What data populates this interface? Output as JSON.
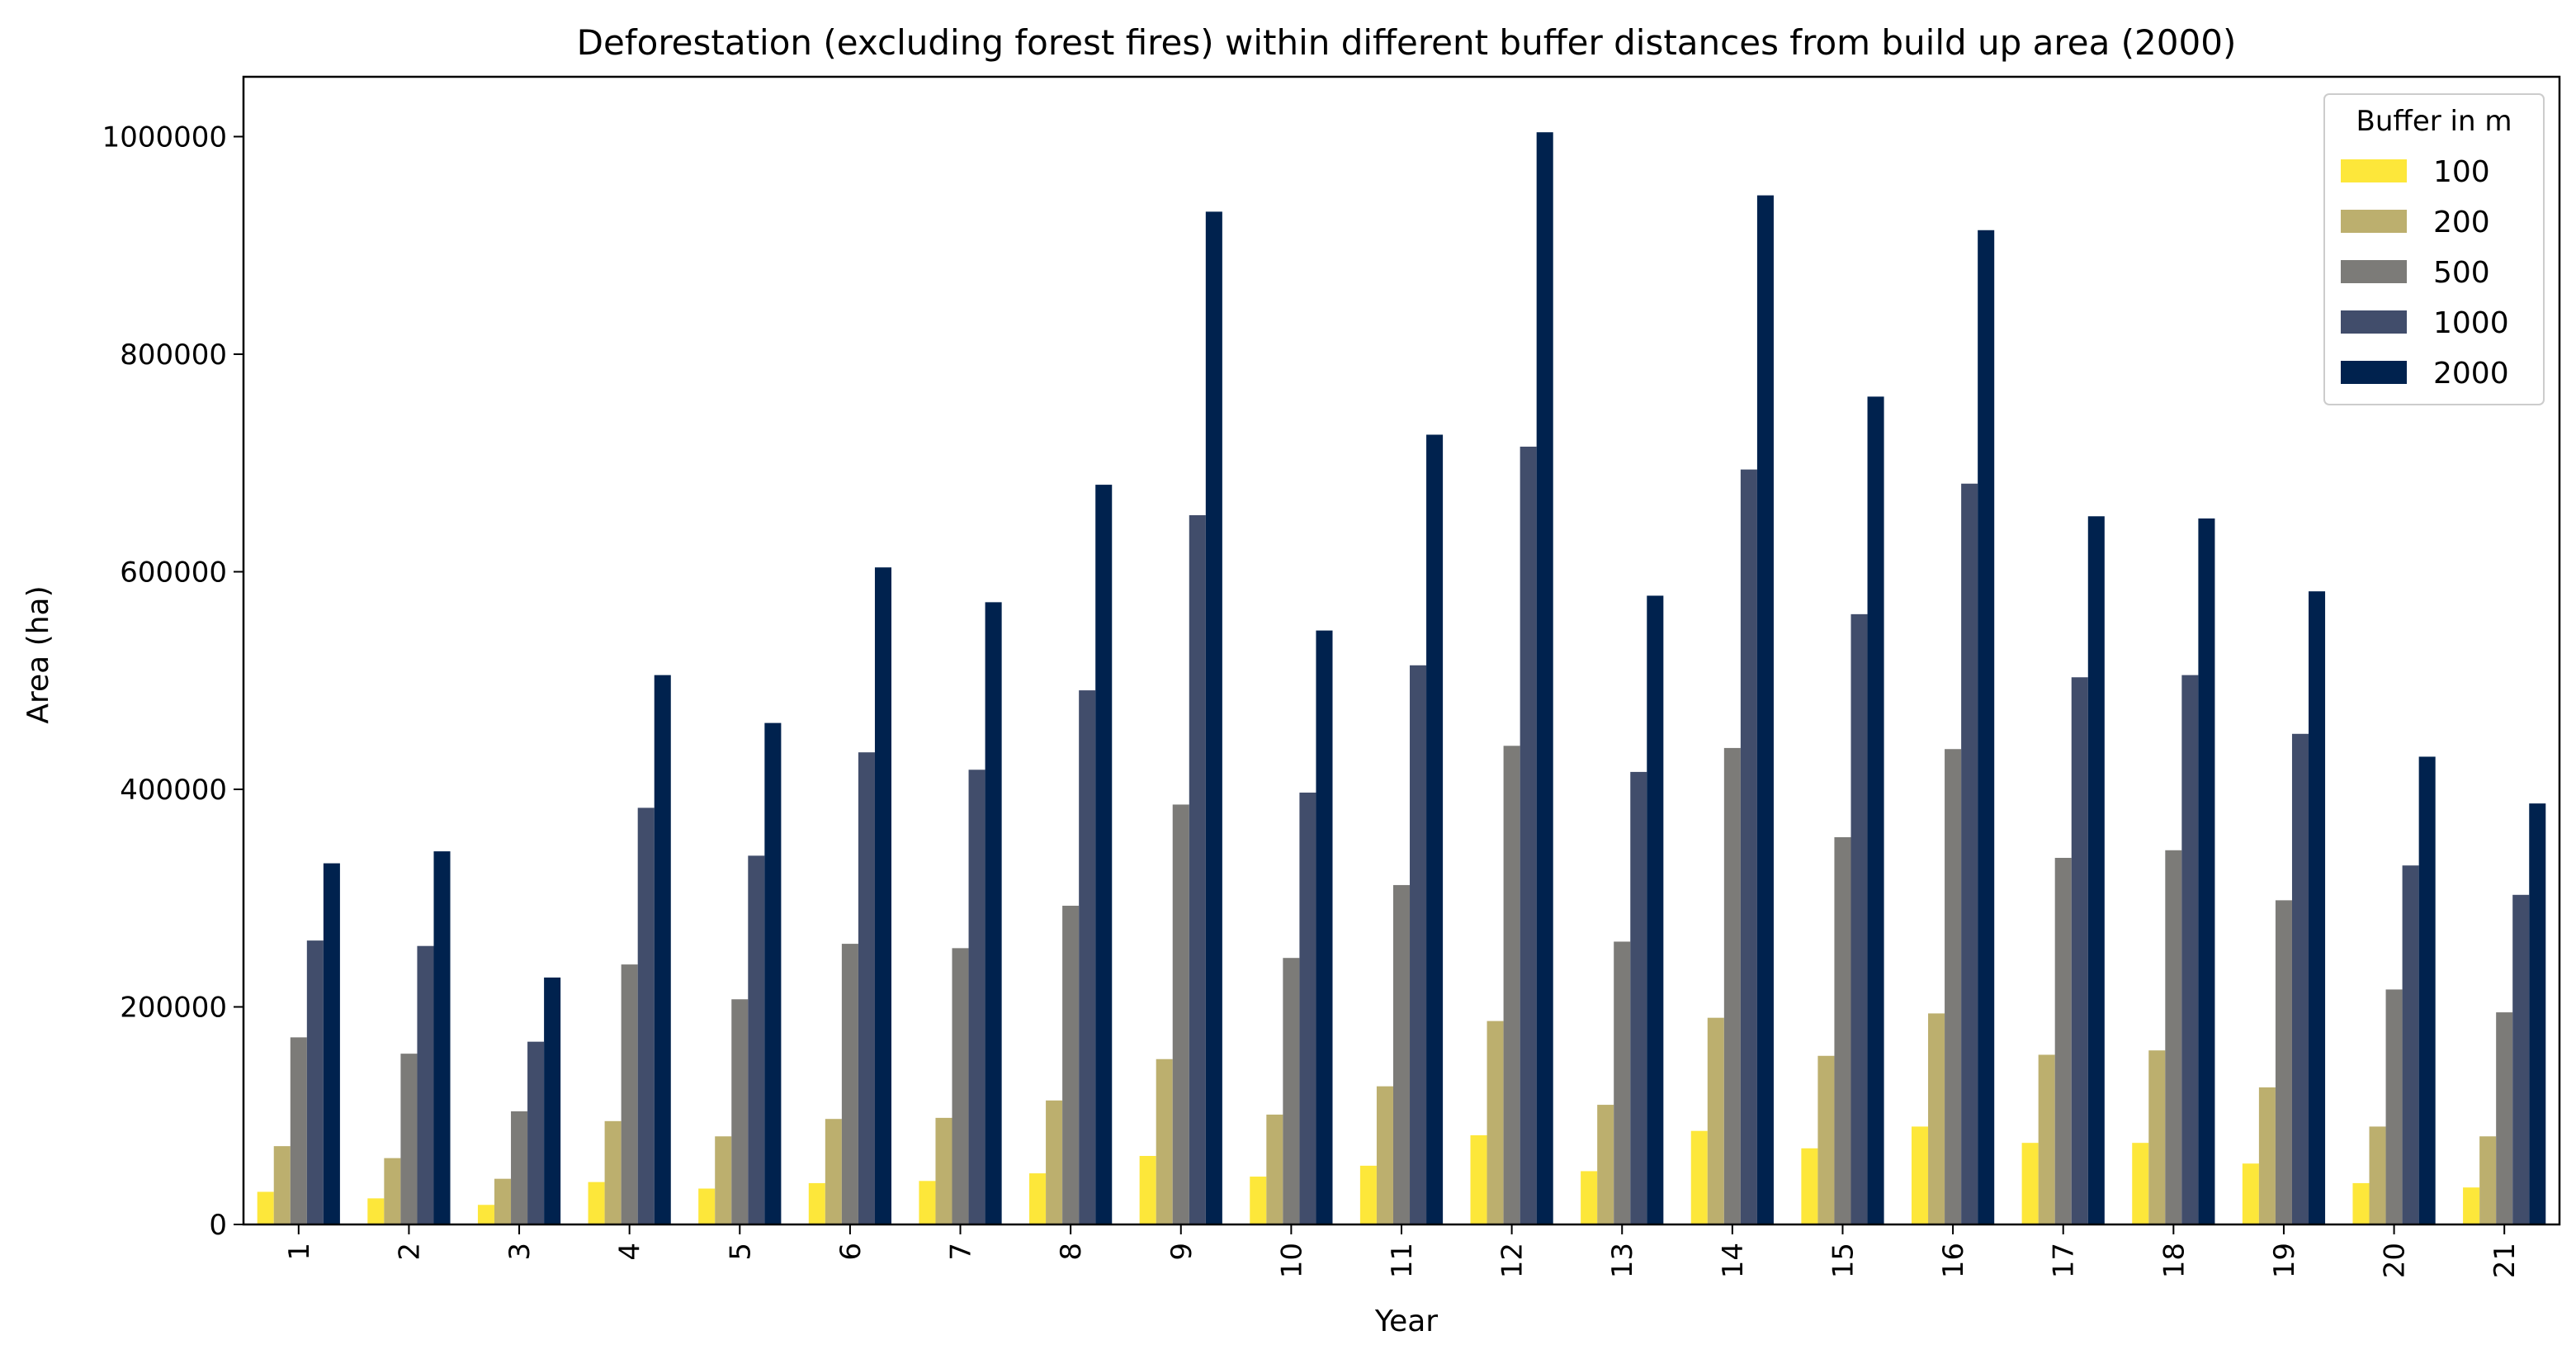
{
  "chart_data": {
    "type": "bar",
    "title": "Deforestation (excluding forest fires) within different buffer distances from build up area (2000)",
    "xlabel": "Year",
    "ylabel": "Area (ha)",
    "ylim": [
      0,
      1055000
    ],
    "yticks": [
      0,
      200000,
      400000,
      600000,
      800000,
      1000000
    ],
    "ytick_labels": [
      "0",
      "200000",
      "400000",
      "600000",
      "800000",
      "1000000"
    ],
    "grid": false,
    "legend": {
      "title": "Buffer in m",
      "placement": "top-right"
    },
    "categories": [
      "1",
      "2",
      "3",
      "4",
      "5",
      "6",
      "7",
      "8",
      "9",
      "10",
      "11",
      "12",
      "13",
      "14",
      "15",
      "16",
      "17",
      "18",
      "19",
      "20",
      "21"
    ],
    "series": [
      {
        "name": "100",
        "color": "#fde73a",
        "values": [
          30000,
          24000,
          18000,
          39000,
          33000,
          38000,
          40000,
          47000,
          63000,
          44000,
          54000,
          82000,
          49000,
          86000,
          70000,
          90000,
          75000,
          75000,
          56000,
          38000,
          34000
        ]
      },
      {
        "name": "200",
        "color": "#bcaf6e",
        "values": [
          72000,
          61000,
          42000,
          95000,
          81000,
          97000,
          98000,
          114000,
          152000,
          101000,
          127000,
          187000,
          110000,
          190000,
          155000,
          194000,
          156000,
          160000,
          126000,
          90000,
          81000
        ]
      },
      {
        "name": "500",
        "color": "#7c7b78",
        "values": [
          172000,
          157000,
          104000,
          239000,
          207000,
          258000,
          254000,
          293000,
          386000,
          245000,
          312000,
          440000,
          260000,
          438000,
          356000,
          437000,
          337000,
          344000,
          298000,
          216000,
          195000
        ]
      },
      {
        "name": "1000",
        "color": "#414d6b",
        "values": [
          261000,
          256000,
          168000,
          383000,
          339000,
          434000,
          418000,
          491000,
          652000,
          397000,
          514000,
          715000,
          416000,
          694000,
          561000,
          681000,
          503000,
          505000,
          451000,
          330000,
          303000
        ]
      },
      {
        "name": "2000",
        "color": "#00224e",
        "values": [
          332000,
          343000,
          227000,
          505000,
          461000,
          604000,
          572000,
          680000,
          931000,
          546000,
          726000,
          1004000,
          578000,
          946000,
          761000,
          914000,
          651000,
          649000,
          582000,
          430000,
          387000
        ]
      }
    ]
  }
}
